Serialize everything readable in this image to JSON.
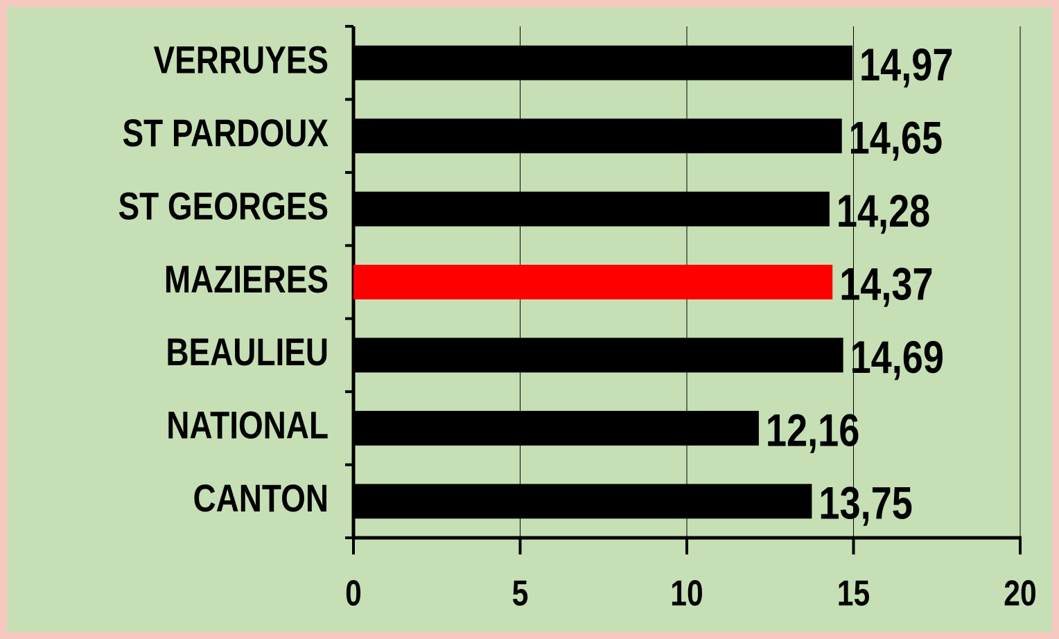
{
  "chart_data": {
    "type": "barh",
    "categories": [
      "VERRUYES",
      "ST PARDOUX",
      "ST GEORGES",
      "MAZIERES",
      "BEAULIEU",
      "NATIONAL",
      "CANTON"
    ],
    "values": [
      14.97,
      14.65,
      14.28,
      14.37,
      14.69,
      12.16,
      13.75
    ],
    "value_labels": [
      "14,97",
      "14,65",
      "14,28",
      "14,37",
      "14,69",
      "12,16",
      "13,75"
    ],
    "colors": [
      "#000000",
      "#000000",
      "#000000",
      "#ff0000",
      "#000000",
      "#000000",
      "#000000"
    ],
    "xlim": [
      0,
      20
    ],
    "xticks": [
      0,
      5,
      10,
      15,
      20
    ],
    "grid": true
  }
}
